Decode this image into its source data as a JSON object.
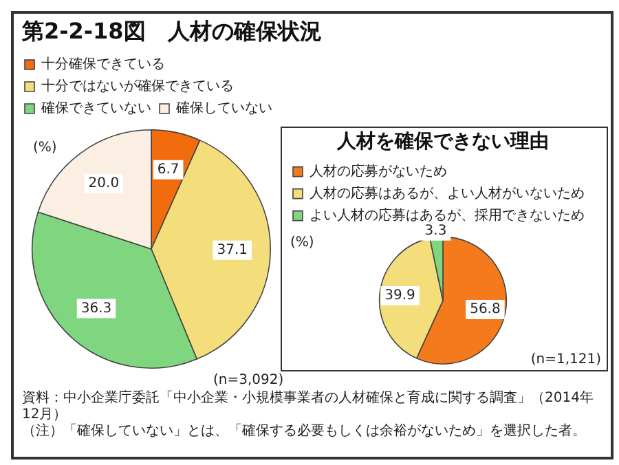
{
  "chart_data": [
    {
      "type": "pie",
      "title": "第2-2-18図　人材の確保状況",
      "categories": [
        "十分確保できている",
        "十分ではないが確保できている",
        "確保できていない",
        "確保していない"
      ],
      "values": [
        6.7,
        37.1,
        36.3,
        20.0
      ],
      "colors": [
        "#f26b0c",
        "#f4de7c",
        "#7fd67f",
        "#fbeee2"
      ],
      "value_labels": [
        "6.7",
        "37.1",
        "36.3",
        "20.0"
      ],
      "legend": "top left",
      "annotations": [
        "(%)",
        "(n=3,092)",
        "資料：中小企業庁委託「中小企業・小規模事業者の人材確保と育成に関する調査」（2014年12月）",
        "（注）「確保していない」とは、「確保する必要もしくは余裕がないため」を選択した者。"
      ]
    },
    {
      "type": "pie",
      "title": "人材を確保できない理由",
      "categories": [
        "人材の応募がないため",
        "人材の応募はあるが、よい人材がいないため",
        "よい人材の応募はあるが、採用できないため"
      ],
      "values": [
        56.8,
        39.9,
        3.3
      ],
      "colors": [
        "#f47a1c",
        "#f4de7c",
        "#7fd67f"
      ],
      "value_labels": [
        "56.8",
        "39.9",
        "3.3"
      ],
      "legend": "top left",
      "annotations": [
        "(%)",
        "(n=1,121)"
      ]
    }
  ]
}
